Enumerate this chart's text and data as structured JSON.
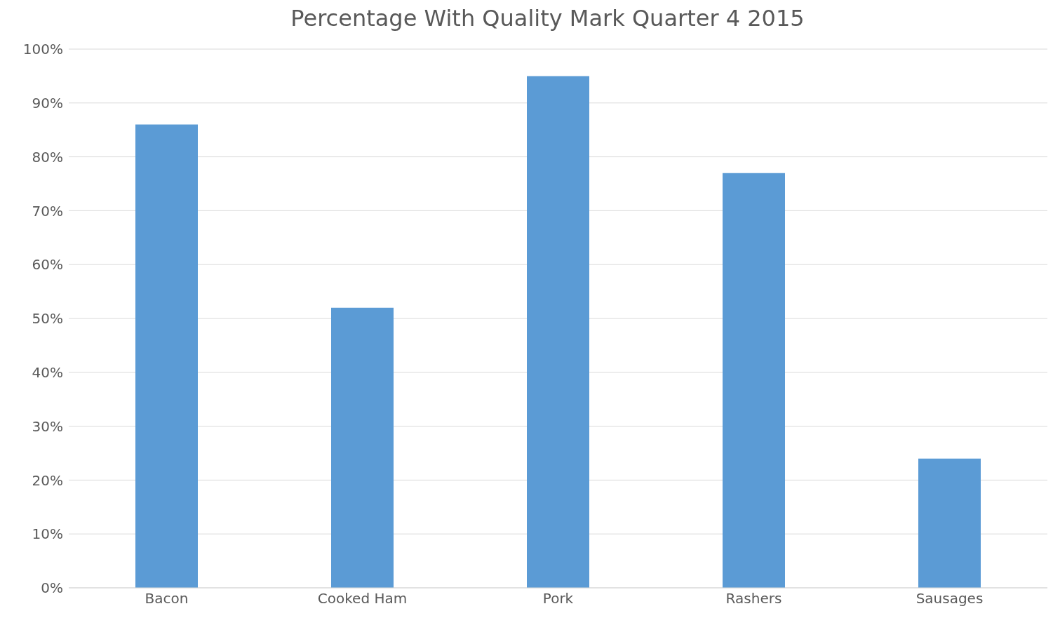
{
  "chart_data": {
    "type": "bar",
    "title": "Percentage With Quality Mark Quarter 4 2015",
    "categories": [
      "Bacon",
      "Cooked Ham",
      "Pork",
      "Rashers",
      "Sausages"
    ],
    "values": [
      86,
      52,
      95,
      77,
      24
    ],
    "color": "#5b9bd5",
    "ylim": [
      0,
      100
    ],
    "yticks": [
      {
        "value": 0,
        "label": "0%"
      },
      {
        "value": 10,
        "label": "10%"
      },
      {
        "value": 20,
        "label": "20%"
      },
      {
        "value": 30,
        "label": "30%"
      },
      {
        "value": 40,
        "label": "40%"
      },
      {
        "value": 50,
        "label": "50%"
      },
      {
        "value": 60,
        "label": "60%"
      },
      {
        "value": 70,
        "label": "70%"
      },
      {
        "value": 80,
        "label": "80%"
      },
      {
        "value": 90,
        "label": "90%"
      },
      {
        "value": 100,
        "label": "100%"
      }
    ],
    "grid": "y",
    "legend": false
  }
}
